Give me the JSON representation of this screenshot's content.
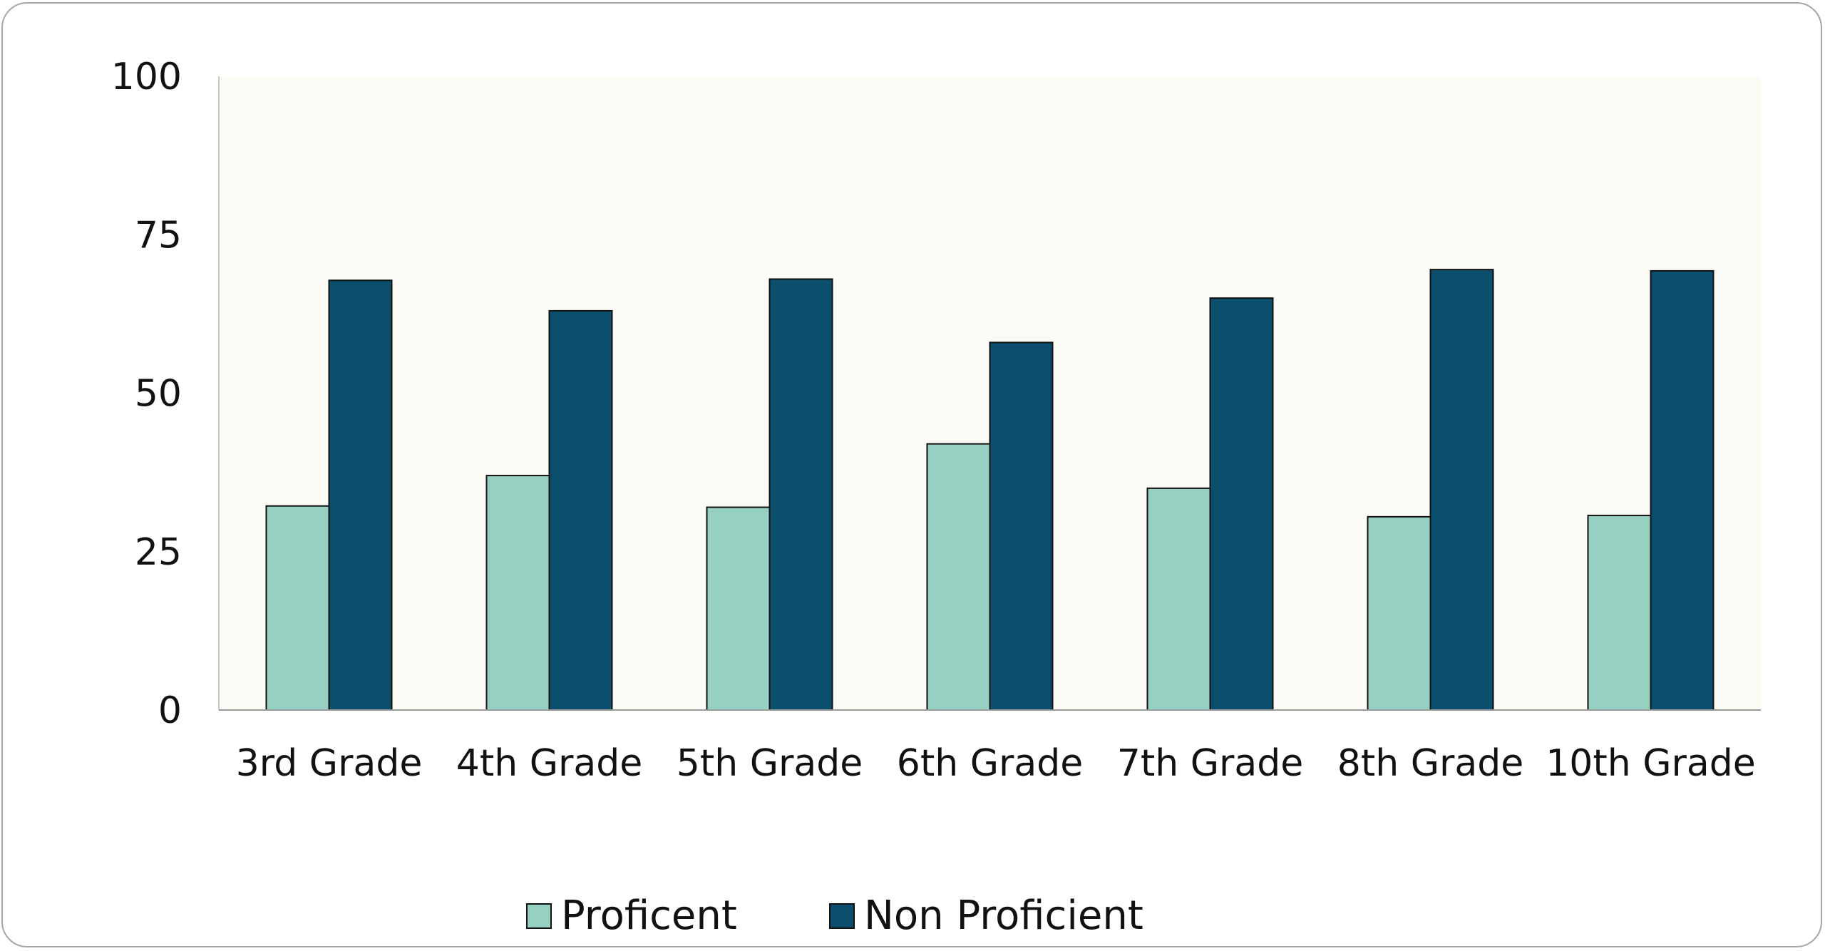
{
  "chart_data": {
    "type": "bar",
    "categories": [
      "3rd Grade",
      "4th Grade",
      "5th Grade",
      "6th Grade",
      "7th Grade",
      "8th Grade",
      "10th Grade"
    ],
    "series": [
      {
        "name": "Proficent",
        "color": "#96d0c3",
        "values": [
          32.2,
          37,
          32,
          42,
          35,
          30.5,
          30.7
        ]
      },
      {
        "name": "Non Proficient",
        "color": "#0b4f6c",
        "values": [
          67.8,
          63,
          68,
          58,
          65,
          69.5,
          69.3
        ]
      }
    ],
    "yticks": [
      "0",
      "25",
      "50",
      "75",
      "100"
    ],
    "ylim": [
      0,
      100
    ],
    "grid": false,
    "legend_position": "bottom",
    "plot_background": "#fcfbf6",
    "title": "",
    "xlabel": "",
    "ylabel": ""
  }
}
